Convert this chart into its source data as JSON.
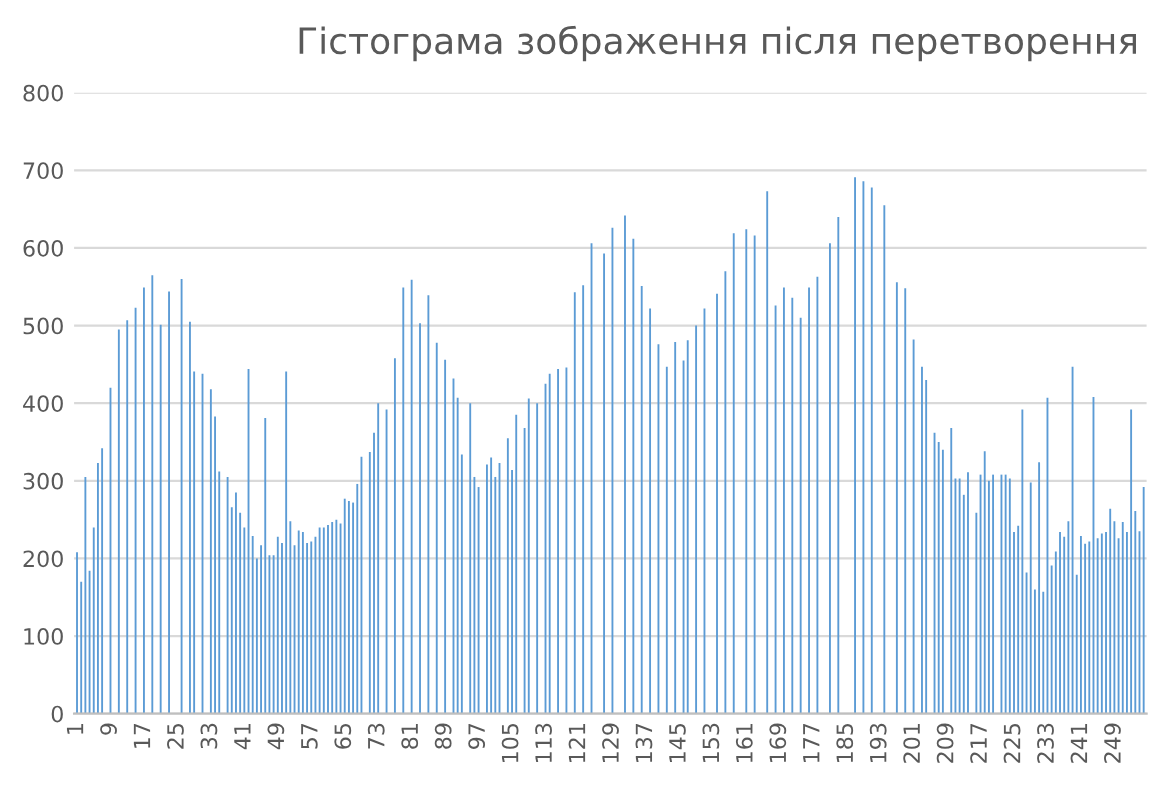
{
  "chart_data": {
    "type": "bar",
    "title": "Гістограма зображення після перетворення",
    "categories": [
      "1",
      null,
      null,
      null,
      null,
      null,
      null,
      null,
      "9",
      null,
      null,
      null,
      null,
      null,
      null,
      null,
      "17",
      null,
      null,
      null,
      null,
      null,
      null,
      null,
      "25",
      null,
      null,
      null,
      null,
      null,
      null,
      null,
      "33",
      null,
      null,
      null,
      null,
      null,
      null,
      null,
      "41",
      null,
      null,
      null,
      null,
      null,
      null,
      null,
      "49",
      null,
      null,
      null,
      null,
      null,
      null,
      null,
      "57",
      null,
      null,
      null,
      null,
      null,
      null,
      null,
      "65",
      null,
      null,
      null,
      null,
      null,
      null,
      null,
      "73",
      null,
      null,
      null,
      null,
      null,
      null,
      null,
      "81",
      null,
      null,
      null,
      null,
      null,
      null,
      null,
      "89",
      null,
      null,
      null,
      null,
      null,
      null,
      null,
      "97",
      null,
      null,
      null,
      null,
      null,
      null,
      null,
      "105",
      null,
      null,
      null,
      null,
      null,
      null,
      null,
      "113",
      null,
      null,
      null,
      null,
      null,
      null,
      null,
      "121",
      null,
      null,
      null,
      null,
      null,
      null,
      null,
      "129",
      null,
      null,
      null,
      null,
      null,
      null,
      null,
      "137",
      null,
      null,
      null,
      null,
      null,
      null,
      null,
      "145",
      null,
      null,
      null,
      null,
      null,
      null,
      null,
      "153",
      null,
      null,
      null,
      null,
      null,
      null,
      null,
      "161",
      null,
      null,
      null,
      null,
      null,
      null,
      null,
      "169",
      null,
      null,
      null,
      null,
      null,
      null,
      null,
      "177",
      null,
      null,
      null,
      null,
      null,
      null,
      null,
      "185",
      null,
      null,
      null,
      null,
      null,
      null,
      null,
      "193",
      null,
      null,
      null,
      null,
      null,
      null,
      null,
      "201",
      null,
      null,
      null,
      null,
      null,
      null,
      null,
      "209",
      null,
      null,
      null,
      null,
      null,
      null,
      null,
      "217",
      null,
      null,
      null,
      null,
      null,
      null,
      null,
      "225",
      null,
      null,
      null,
      null,
      null,
      null,
      null,
      "233",
      null,
      null,
      null,
      null,
      null,
      null,
      null,
      "241",
      null,
      null,
      null,
      null,
      null,
      null,
      null,
      "249",
      null,
      null,
      null,
      null,
      null,
      null,
      null
    ],
    "values": [
      208,
      170,
      305,
      184,
      240,
      323,
      342,
      0,
      420,
      0,
      495,
      0,
      507,
      0,
      523,
      0,
      549,
      0,
      565,
      0,
      501,
      0,
      544,
      0,
      0,
      560,
      0,
      505,
      441,
      0,
      438,
      0,
      418,
      383,
      312,
      0,
      305,
      266,
      285,
      259,
      240,
      444,
      229,
      200,
      217,
      381,
      204,
      204,
      228,
      220,
      441,
      248,
      217,
      236,
      234,
      220,
      222,
      228,
      240,
      240,
      243,
      247,
      250,
      245,
      277,
      274,
      272,
      296,
      331,
      0,
      337,
      362,
      400,
      0,
      392,
      0,
      458,
      0,
      549,
      0,
      559,
      0,
      503,
      0,
      539,
      0,
      478,
      0,
      456,
      0,
      432,
      407,
      334,
      0,
      400,
      305,
      292,
      0,
      321,
      330,
      305,
      323,
      0,
      355,
      314,
      385,
      0,
      368,
      406,
      0,
      400,
      0,
      425,
      438,
      0,
      444,
      0,
      446,
      0,
      543,
      0,
      552,
      0,
      606,
      0,
      0,
      593,
      0,
      626,
      0,
      0,
      642,
      0,
      612,
      0,
      551,
      0,
      522,
      0,
      476,
      0,
      447,
      0,
      479,
      0,
      455,
      481,
      0,
      500,
      0,
      522,
      0,
      0,
      541,
      0,
      570,
      0,
      619,
      0,
      0,
      624,
      0,
      616,
      0,
      0,
      673,
      0,
      526,
      0,
      549,
      0,
      536,
      0,
      510,
      0,
      549,
      0,
      563,
      0,
      0,
      606,
      0,
      640,
      0,
      0,
      0,
      691,
      0,
      686,
      0,
      678,
      0,
      0,
      655,
      0,
      0,
      556,
      0,
      548,
      0,
      482,
      0,
      447,
      430,
      0,
      362,
      350,
      340,
      0,
      368,
      303,
      303,
      282,
      311,
      0,
      259,
      308,
      338,
      300,
      308,
      0,
      308,
      308,
      303,
      234,
      242,
      392,
      182,
      298,
      160,
      324,
      157,
      407,
      191,
      209,
      234,
      228,
      248,
      447,
      179,
      229,
      219,
      222,
      408,
      226,
      232,
      234,
      264,
      248,
      226,
      247,
      234,
      392,
      261,
      235,
      292
    ],
    "color": "#5b9bd5",
    "ylim": [
      0,
      800
    ],
    "yticks": [
      0,
      100,
      200,
      300,
      400,
      500,
      600,
      700,
      800
    ],
    "grid": "y",
    "legend": false
  }
}
